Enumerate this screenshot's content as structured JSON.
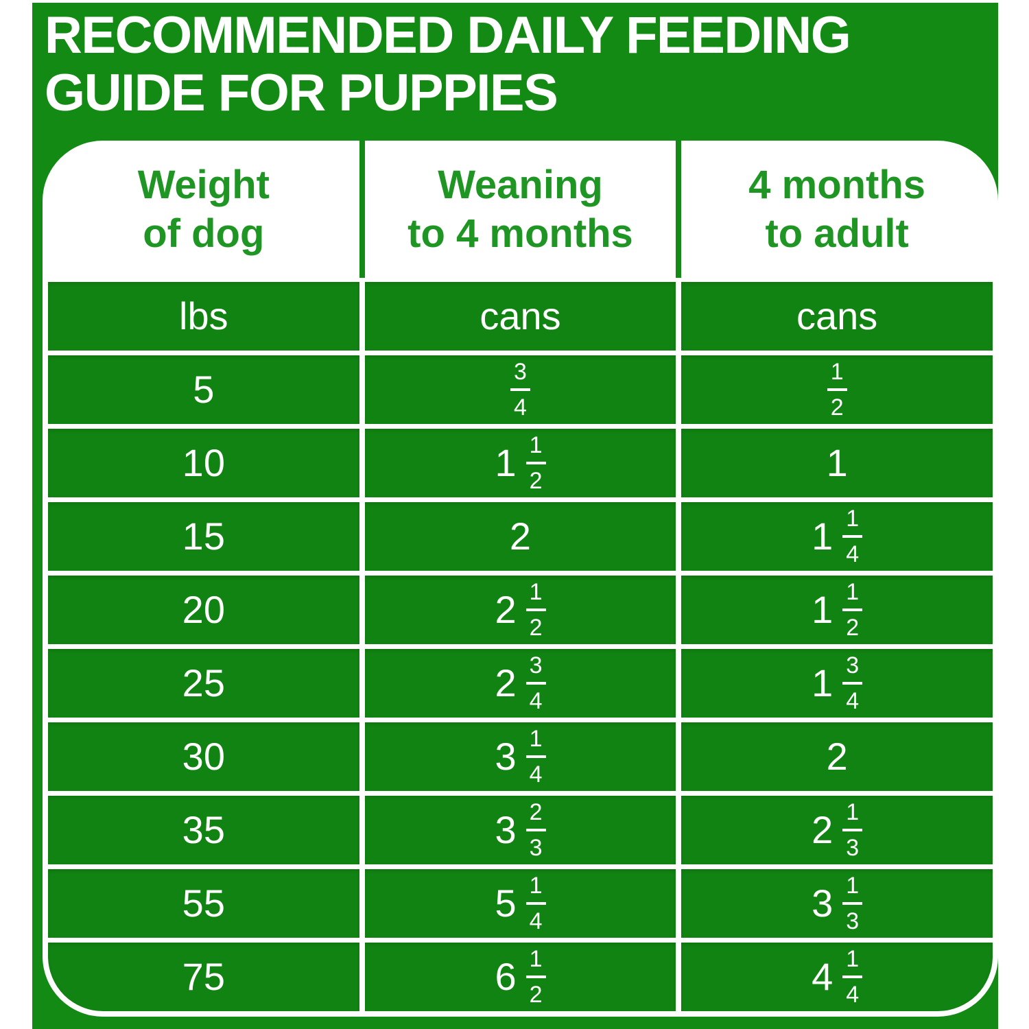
{
  "title": {
    "line1": "RECOMMENDED DAILY FEEDING",
    "line2": "GUIDE FOR PUPPIES"
  },
  "colors": {
    "panel_green": "#128A14",
    "cell_green": "#118312",
    "header_text_green": "#1F9623",
    "text_white": "#FFFFFF",
    "page_background": "#FFFFFF"
  },
  "table": {
    "columns": [
      {
        "header_line1": "Weight",
        "header_line2": "of dog",
        "unit": "lbs"
      },
      {
        "header_line1": "Weaning",
        "header_line2": "to 4 months",
        "unit": "cans"
      },
      {
        "header_line1": "4 months",
        "header_line2": "to adult",
        "unit": "cans"
      }
    ],
    "units": [
      "lbs",
      "cans",
      "cans"
    ],
    "rows": [
      [
        "5",
        "3/4",
        "1/2"
      ],
      [
        "10",
        "1 1/2",
        "1"
      ],
      [
        "15",
        "2",
        "1 1/4"
      ],
      [
        "20",
        "2 1/2",
        "1 1/2"
      ],
      [
        "25",
        "2 3/4",
        "1 3/4"
      ],
      [
        "30",
        "3 1/4",
        "2"
      ],
      [
        "35",
        "3 2/3",
        "2 1/3"
      ],
      [
        "55",
        "5 1/4",
        "3 1/3"
      ],
      [
        "75",
        "6 1/2",
        "4 1/4"
      ]
    ]
  },
  "chart_data": {
    "type": "table",
    "title": "RECOMMENDED DAILY FEEDING GUIDE FOR PUPPIES",
    "columns": [
      "Weight of dog (lbs)",
      "Weaning to 4 months (cans)",
      "4 months to adult (cans)"
    ],
    "rows": [
      [
        5,
        "3/4",
        "1/2"
      ],
      [
        10,
        "1 1/2",
        "1"
      ],
      [
        15,
        "2",
        "1 1/4"
      ],
      [
        20,
        "2 1/2",
        "1 1/2"
      ],
      [
        25,
        "2 3/4",
        "1 3/4"
      ],
      [
        30,
        "3 1/4",
        "2"
      ],
      [
        35,
        "3 2/3",
        "2 1/3"
      ],
      [
        55,
        "5 1/4",
        "3 1/3"
      ],
      [
        75,
        "6 1/2",
        "4 1/4"
      ]
    ]
  }
}
